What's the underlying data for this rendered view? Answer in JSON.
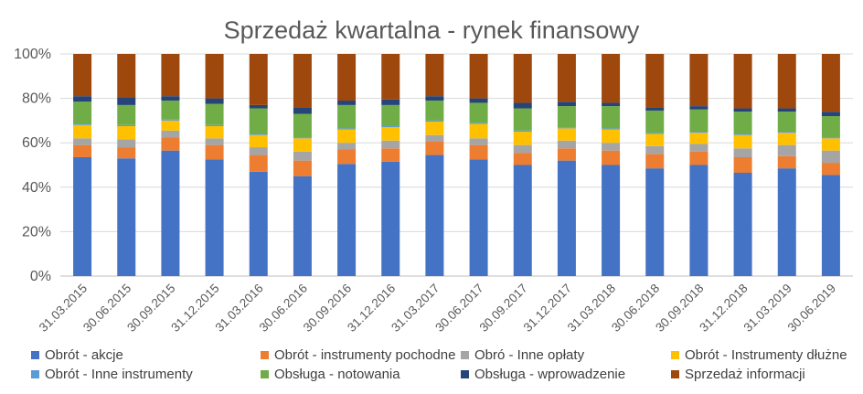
{
  "chart_data": {
    "type": "bar",
    "stacked": "percent",
    "title": "Sprzedaż kwartalna - rynek finansowy",
    "ylim": [
      0,
      100
    ],
    "yticks": [
      "0%",
      "20%",
      "40%",
      "60%",
      "80%",
      "100%"
    ],
    "grid": true,
    "legend_position": "bottom",
    "categories": [
      "31.03.2015",
      "30.06.2015",
      "30.09.2015",
      "31.12.2015",
      "31.03.2016",
      "30.06.2016",
      "30.09.2016",
      "31.12.2016",
      "31.03.2017",
      "30.06.2017",
      "30.09.2017",
      "31.12.2017",
      "31.03.2018",
      "30.06.2018",
      "30.09.2018",
      "31.12.2018",
      "31.03.2019",
      "30.06.2019"
    ],
    "series": [
      {
        "name": "Obrót - akcje",
        "color": "#4472C4",
        "values": [
          53.5,
          53,
          56.5,
          52.5,
          47,
          45,
          50.5,
          51.5,
          54.5,
          52.5,
          50,
          52,
          50,
          48.5,
          50,
          46.5,
          48.5,
          45.5
        ]
      },
      {
        "name": "Obrót - instrumenty pochodne",
        "color": "#ED7D31",
        "values": [
          5.5,
          5,
          6,
          6.5,
          7.5,
          7,
          6.5,
          6,
          6,
          6.5,
          5.5,
          5.5,
          6.5,
          6.5,
          6,
          7,
          5.5,
          5.5
        ]
      },
      {
        "name": "Obró - Inne opłaty",
        "color": "#A5A5A5",
        "values": [
          3,
          3.5,
          3,
          3,
          3.5,
          4,
          3,
          3.5,
          3,
          3,
          3.5,
          3.5,
          3.5,
          3.5,
          3.5,
          4,
          5,
          5.5
        ]
      },
      {
        "name": "Obrót - Instrumenty dłużne",
        "color": "#FFC000",
        "values": [
          6,
          6,
          4.5,
          5.5,
          5.5,
          6,
          6,
          6,
          6,
          6.5,
          6,
          5.5,
          6,
          5.5,
          5,
          6,
          5.5,
          5.5
        ]
      },
      {
        "name": "Obrót - Inne instrumenty",
        "color": "#5B9BD5",
        "values": [
          0.5,
          0.5,
          0.5,
          0.5,
          0.5,
          0.5,
          0.5,
          0.5,
          0.5,
          0.5,
          0.5,
          0.5,
          0.5,
          0.5,
          0.5,
          0.5,
          0.5,
          0.5
        ]
      },
      {
        "name": "Obsługa - notowania",
        "color": "#70AD47",
        "values": [
          10,
          9,
          8.5,
          9.5,
          11.5,
          10.5,
          10.5,
          9.5,
          9,
          9,
          10,
          9.5,
          10,
          10,
          10,
          10,
          9,
          9.5
        ]
      },
      {
        "name": "Obsługa - wprowadzenie",
        "color": "#264478",
        "values": [
          2.5,
          3.5,
          2,
          2.5,
          1.5,
          3,
          2,
          2.5,
          2,
          2,
          2.5,
          2,
          1.5,
          1.5,
          1.5,
          1.5,
          1.5,
          2
        ]
      },
      {
        "name": "Sprzedaż informacji",
        "color": "#9E480E",
        "values": [
          19,
          19.5,
          19,
          20,
          23,
          24,
          21,
          20.5,
          19,
          20,
          22,
          21.5,
          22,
          24,
          23.5,
          24.5,
          24.5,
          26
        ]
      }
    ]
  }
}
